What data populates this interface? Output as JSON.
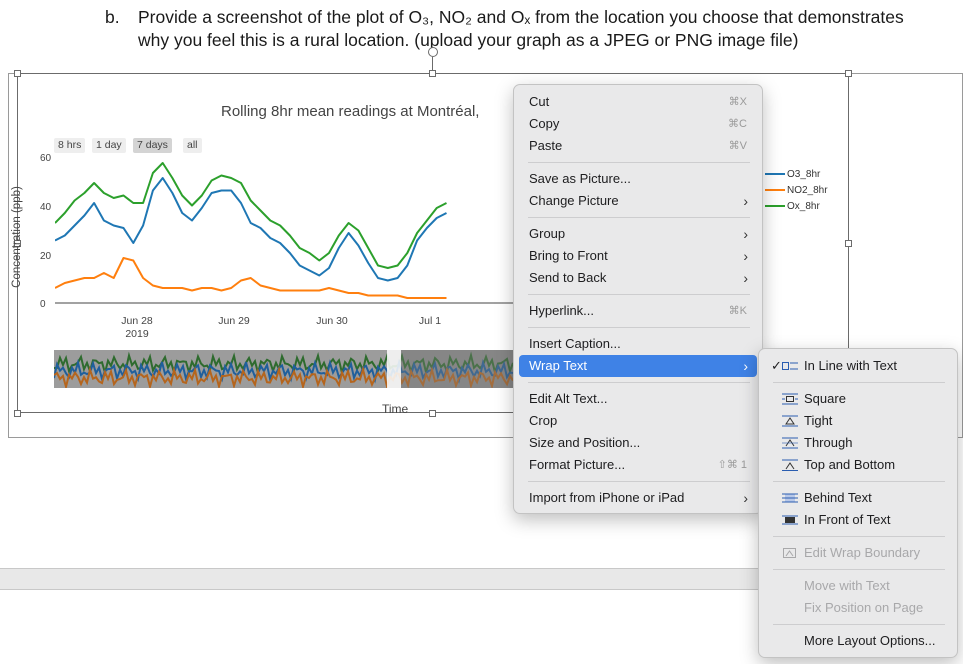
{
  "question": {
    "number": "b.",
    "line1": "Provide a screenshot of the plot of O₃, NO₂ and Oₓ from the location you choose that demonstrates",
    "line2": "why you feel this is a rural location. (upload your graph as a JPEG or PNG image file)"
  },
  "chart": {
    "title": "Rolling 8hr mean readings at  Montréal,",
    "range_buttons": [
      "8 hrs",
      "1 day",
      "7 days",
      "all"
    ],
    "active_range": "7 days",
    "ylabel": "Concentration (ppb)",
    "xlabel": "Time",
    "yticks": [
      "60",
      "40",
      "20",
      "0"
    ],
    "xticks": [
      {
        "line1": "Jun 28",
        "line2": "2019"
      },
      {
        "line1": "Jun 29",
        "line2": ""
      },
      {
        "line1": "Jun 30",
        "line2": ""
      },
      {
        "line1": "Jul 1",
        "line2": ""
      }
    ],
    "legend": [
      "O3_8hr",
      "NO2_8hr",
      "Ox_8hr"
    ]
  },
  "chart_data": {
    "type": "line",
    "title": "Rolling 8hr mean readings at  Montréal,",
    "xlabel": "Time",
    "ylabel": "Concentration (ppb)",
    "ylim": [
      0,
      60
    ],
    "x_ticks": [
      "Jun 28 2019",
      "Jun 29",
      "Jun 30",
      "Jul 1"
    ],
    "x": [
      0,
      0.1,
      0.2,
      0.3,
      0.4,
      0.5,
      0.6,
      0.7,
      0.8,
      0.9,
      1.0,
      1.1,
      1.2,
      1.3,
      1.4,
      1.5,
      1.6,
      1.7,
      1.8,
      1.9,
      2.0,
      2.1,
      2.2,
      2.3,
      2.4,
      2.5,
      2.6,
      2.7,
      2.8,
      2.9,
      3.0,
      3.1,
      3.2,
      3.3,
      3.4,
      3.5,
      3.6,
      3.7,
      3.8,
      3.9,
      4.0
    ],
    "series": [
      {
        "name": "O3_8hr",
        "color": "#1f77b4",
        "values": [
          25,
          27,
          31,
          35,
          40,
          33,
          31,
          30,
          24,
          31,
          45,
          50,
          44,
          36,
          33,
          38,
          44,
          45,
          45,
          40,
          32,
          30,
          26,
          24,
          20,
          15,
          13,
          11,
          14,
          22,
          28,
          23,
          16,
          10,
          9,
          10,
          15,
          25,
          30,
          34,
          36
        ]
      },
      {
        "name": "NO2_8hr",
        "color": "#ff7f0e",
        "values": [
          6,
          8,
          9,
          10,
          10,
          12,
          10,
          18,
          17,
          10,
          7,
          6,
          6,
          6,
          5,
          6,
          6,
          5,
          6,
          9,
          10,
          7,
          6,
          5,
          5,
          5,
          5,
          5,
          6,
          5,
          4,
          4,
          3,
          3,
          3,
          3,
          2,
          2,
          2,
          2,
          2
        ]
      },
      {
        "name": "Ox_8hr",
        "color": "#2ca02c",
        "values": [
          32,
          36,
          41,
          44,
          48,
          44,
          42,
          43,
          40,
          40,
          52,
          56,
          50,
          43,
          39,
          43,
          49,
          51,
          50,
          48,
          41,
          37,
          33,
          31,
          27,
          22,
          20,
          17,
          20,
          27,
          32,
          29,
          22,
          15,
          14,
          15,
          20,
          28,
          33,
          38,
          40
        ]
      }
    ]
  },
  "context_menu": {
    "items": [
      {
        "type": "item",
        "label": "Cut",
        "shortcut": "⌘X"
      },
      {
        "type": "item",
        "label": "Copy",
        "shortcut": "⌘C"
      },
      {
        "type": "item",
        "label": "Paste",
        "shortcut": "⌘V"
      },
      {
        "type": "sep"
      },
      {
        "type": "item",
        "label": "Save as Picture..."
      },
      {
        "type": "item",
        "label": "Change Picture",
        "submenu": true
      },
      {
        "type": "sep"
      },
      {
        "type": "item",
        "label": "Group",
        "submenu": true
      },
      {
        "type": "item",
        "label": "Bring to Front",
        "submenu": true
      },
      {
        "type": "item",
        "label": "Send to Back",
        "submenu": true
      },
      {
        "type": "sep"
      },
      {
        "type": "item",
        "label": "Hyperlink...",
        "shortcut": "⌘K"
      },
      {
        "type": "sep"
      },
      {
        "type": "item",
        "label": "Insert Caption..."
      },
      {
        "type": "item",
        "label": "Wrap Text",
        "submenu": true,
        "highlighted": true
      },
      {
        "type": "sep"
      },
      {
        "type": "item",
        "label": "Edit Alt Text..."
      },
      {
        "type": "item",
        "label": "Crop"
      },
      {
        "type": "item",
        "label": "Size and Position..."
      },
      {
        "type": "item",
        "label": "Format Picture...",
        "shortcut": "⇧⌘ 1"
      },
      {
        "type": "sep"
      },
      {
        "type": "item",
        "label": "Import from iPhone or iPad",
        "submenu": true
      }
    ]
  },
  "wrap_submenu": {
    "items": [
      {
        "type": "item",
        "label": "In Line with Text",
        "checked": true,
        "icon": "inline-wrap-icon"
      },
      {
        "type": "sep"
      },
      {
        "type": "item",
        "label": "Square",
        "icon": "square-wrap-icon"
      },
      {
        "type": "item",
        "label": "Tight",
        "icon": "tight-wrap-icon"
      },
      {
        "type": "item",
        "label": "Through",
        "icon": "through-wrap-icon"
      },
      {
        "type": "item",
        "label": "Top and Bottom",
        "icon": "top-bottom-wrap-icon"
      },
      {
        "type": "sep"
      },
      {
        "type": "item",
        "label": "Behind Text",
        "icon": "behind-text-icon"
      },
      {
        "type": "item",
        "label": "In Front of Text",
        "icon": "in-front-text-icon"
      },
      {
        "type": "sep"
      },
      {
        "type": "item",
        "label": "Edit Wrap Boundary",
        "disabled": true,
        "icon": "edit-wrap-boundary-icon"
      },
      {
        "type": "sep"
      },
      {
        "type": "item",
        "label": "Move with Text",
        "disabled": true
      },
      {
        "type": "item",
        "label": "Fix Position on Page",
        "disabled": true
      },
      {
        "type": "sep"
      },
      {
        "type": "item",
        "label": "More Layout Options..."
      }
    ]
  }
}
